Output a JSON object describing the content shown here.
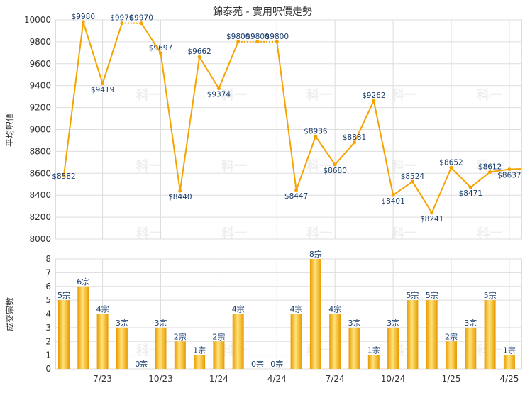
{
  "title": "錦泰苑 - 實用呎價走勢",
  "watermark": "科一",
  "colors": {
    "line": "#f5a300",
    "bar_light": "#ffe37a",
    "bar_dark": "#e89a00",
    "grid": "#dddddd",
    "axis_text": "#333333",
    "label_text": "#1a3d6e"
  },
  "chart_data": [
    {
      "type": "line",
      "ylabel": "平均呎價",
      "ylim": [
        8000,
        10000
      ],
      "yticks": [
        8000,
        8200,
        8400,
        8600,
        8800,
        9000,
        9200,
        9400,
        9600,
        9800,
        10000
      ],
      "grid": true,
      "x": [
        0,
        1,
        2,
        3,
        4,
        5,
        6,
        7,
        8,
        9,
        10,
        11,
        12,
        13,
        14,
        15,
        16,
        17,
        18,
        19,
        20,
        21,
        22,
        23,
        24,
        25
      ],
      "values": [
        8582,
        9980,
        9419,
        9970,
        9970,
        9697,
        8440,
        9662,
        9374,
        9800,
        9800,
        9800,
        8447,
        8936,
        8680,
        8881,
        9262,
        8401,
        8524,
        8241,
        8652,
        8471,
        8612,
        8637
      ],
      "labels": [
        "$8582",
        "$9980",
        "$9419",
        "$9970",
        "$9970",
        "$9697",
        "$8440",
        "$9662",
        "$9374",
        "$9800",
        "$9800",
        "$9800",
        "$8447",
        "$8936",
        "$8680",
        "$8881",
        "$9262",
        "$8401",
        "$8524",
        "$8241",
        "$8652",
        "$8471",
        "$8612",
        "$8637"
      ],
      "point_x": [
        0,
        1,
        2,
        3,
        4,
        5,
        6,
        7,
        8,
        9,
        10,
        11,
        12,
        13,
        14,
        15,
        16,
        17,
        18,
        19,
        20,
        21,
        22,
        23
      ],
      "dotted_segments": [
        [
          3,
          4
        ],
        [
          9,
          10
        ],
        [
          10,
          11
        ]
      ]
    },
    {
      "type": "bar",
      "ylabel": "成交宗數",
      "ylim": [
        0,
        8
      ],
      "yticks": [
        0,
        1,
        2,
        3,
        4,
        5,
        6,
        7,
        8
      ],
      "grid": true,
      "values": [
        5,
        6,
        4,
        3,
        0,
        3,
        2,
        1,
        2,
        4,
        0,
        0,
        4,
        8,
        4,
        3,
        1,
        3,
        5,
        5,
        2,
        3,
        5,
        1
      ],
      "labels": [
        "5宗",
        "6宗",
        "4宗",
        "3宗",
        "0宗",
        "3宗",
        "2宗",
        "1宗",
        "2宗",
        "4宗",
        "0宗",
        "0宗",
        "4宗",
        "8宗",
        "4宗",
        "3宗",
        "1宗",
        "3宗",
        "5宗",
        "5宗",
        "2宗",
        "3宗",
        "5宗",
        "1宗"
      ]
    }
  ],
  "x_axis": {
    "tick_labels": [
      "7/23",
      "10/23",
      "1/24",
      "4/24",
      "7/24",
      "10/24",
      "1/25",
      "4/25"
    ],
    "tick_index": [
      2,
      5,
      8,
      11,
      14,
      17,
      20,
      23
    ]
  }
}
